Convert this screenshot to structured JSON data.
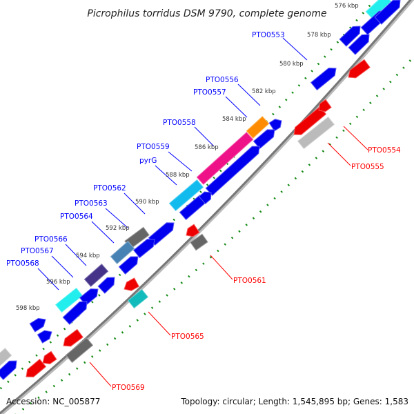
{
  "title": "Picrophilus torridus DSM 9790, complete genome",
  "footer": {
    "accession": "Accession: NC_005877",
    "summary": "Topology: circular; Length: 1,545,895 bp; Genes: 1,583"
  },
  "colors": {
    "forward_label": "#0000ff",
    "reverse_label": "#ff0000",
    "backbone": "#888888",
    "tick": "#118811",
    "blue": "#0000ee",
    "red": "#ee0000",
    "cyan": "#22eeee",
    "skyblue": "#11bbee",
    "orange": "#ff8c00",
    "pink": "#ee1188",
    "darkgray": "#666666",
    "lightgray": "#bbbbbb",
    "steelblue": "#4682b4",
    "purple": "#443388",
    "teal": "#11bbbb"
  },
  "kbp_ticks": [
    "576 kbp",
    "578 kbp",
    "580 kbp",
    "582 kbp",
    "584 kbp",
    "586 kbp",
    "588 kbp",
    "590 kbp",
    "592 kbp",
    "594 kbp",
    "596 kbp",
    "598 kbp"
  ],
  "forward_labels": [
    "PTO0553",
    "PTO0556",
    "PTO0557",
    "PTO0558",
    "PTO0559",
    "pyrG",
    "PTO0562",
    "PTO0563",
    "PTO0564",
    "PTO0566",
    "PTO0567",
    "PTO0568"
  ],
  "reverse_labels": [
    "PTO0554",
    "PTO0555",
    "PTO0561",
    "PTO0565",
    "PTO0569"
  ],
  "genes": [
    {
      "color": "cyan",
      "strand": "+"
    },
    {
      "color": "orange",
      "strand": "+"
    },
    {
      "color": "pink",
      "strand": "+"
    },
    {
      "color": "skyblue",
      "strand": "+"
    },
    {
      "color": "darkgray",
      "strand": "+"
    },
    {
      "color": "steelblue",
      "strand": "+"
    },
    {
      "color": "purple",
      "strand": "+"
    },
    {
      "color": "cyan",
      "strand": "+"
    },
    {
      "color": "lightgray",
      "strand": "+"
    },
    {
      "color": "blue",
      "strand": "+"
    },
    {
      "color": "blue",
      "strand": "+"
    },
    {
      "color": "blue",
      "strand": "+"
    },
    {
      "color": "blue",
      "strand": "+"
    },
    {
      "color": "blue",
      "strand": "+"
    },
    {
      "color": "blue",
      "strand": "+"
    },
    {
      "color": "blue",
      "strand": "+"
    },
    {
      "color": "blue",
      "strand": "+"
    },
    {
      "color": "blue",
      "strand": "+"
    },
    {
      "color": "blue",
      "strand": "+"
    },
    {
      "color": "blue",
      "strand": "+"
    },
    {
      "color": "blue",
      "strand": "+"
    },
    {
      "color": "blue",
      "strand": "+"
    },
    {
      "color": "blue",
      "strand": "+"
    },
    {
      "color": "blue",
      "strand": "+"
    },
    {
      "color": "blue",
      "strand": "+"
    },
    {
      "color": "blue",
      "strand": "+"
    },
    {
      "color": "blue",
      "strand": "+"
    },
    {
      "color": "red",
      "strand": "-"
    },
    {
      "color": "red",
      "strand": "-"
    },
    {
      "color": "red",
      "strand": "-"
    },
    {
      "color": "lightgray",
      "strand": "-"
    },
    {
      "color": "red",
      "strand": "-"
    },
    {
      "color": "darkgray",
      "strand": "-"
    },
    {
      "color": "red",
      "strand": "-"
    },
    {
      "color": "teal",
      "strand": "-"
    },
    {
      "color": "red",
      "strand": "-"
    },
    {
      "color": "darkgray",
      "strand": "-"
    },
    {
      "color": "red",
      "strand": "-"
    },
    {
      "color": "red",
      "strand": "-"
    },
    {
      "color": "blue",
      "strand": "+"
    }
  ]
}
